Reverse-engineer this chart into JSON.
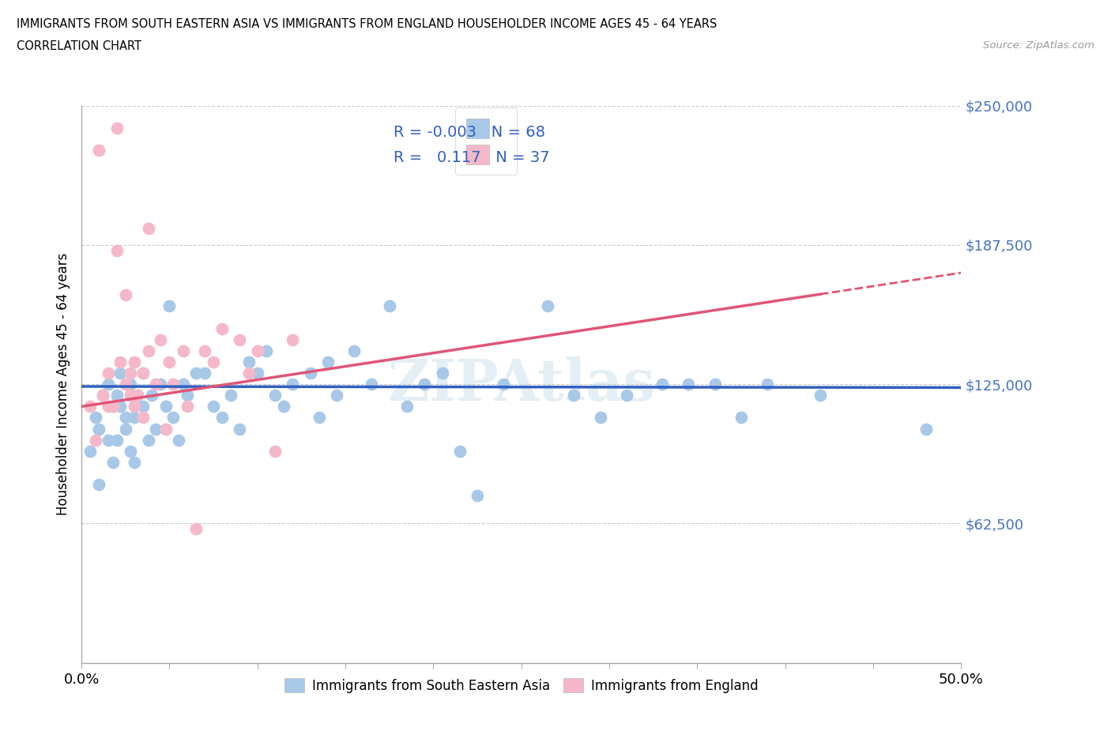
{
  "title_line1": "IMMIGRANTS FROM SOUTH EASTERN ASIA VS IMMIGRANTS FROM ENGLAND HOUSEHOLDER INCOME AGES 45 - 64 YEARS",
  "title_line2": "CORRELATION CHART",
  "source_text": "Source: ZipAtlas.com",
  "ylabel": "Householder Income Ages 45 - 64 years",
  "xlim": [
    0.0,
    0.5
  ],
  "ylim": [
    0,
    250000
  ],
  "yticks": [
    0,
    62500,
    125000,
    187500,
    250000
  ],
  "ytick_labels": [
    "",
    "$62,500",
    "$125,000",
    "$187,500",
    "$250,000"
  ],
  "xticks": [
    0.0,
    0.05,
    0.1,
    0.15,
    0.2,
    0.25,
    0.3,
    0.35,
    0.4,
    0.45,
    0.5
  ],
  "xtick_labels_major": [
    "0.0%",
    "",
    "",
    "",
    "",
    "",
    "",
    "",
    "",
    "",
    "50.0%"
  ],
  "watermark": "ZIPAtlas",
  "blue_color": "#a8c8e8",
  "pink_color": "#f5b8c8",
  "blue_line_color": "#3060c0",
  "pink_line_color": "#e05575",
  "tick_color": "#4472C4",
  "legend_blue_r": "R = -0.003",
  "legend_blue_n": "N = 68",
  "legend_pink_r": "R =  0.117",
  "legend_pink_n": "N = 37",
  "blue_scatter": [
    [
      0.005,
      95000
    ],
    [
      0.008,
      110000
    ],
    [
      0.01,
      80000
    ],
    [
      0.01,
      105000
    ],
    [
      0.012,
      120000
    ],
    [
      0.015,
      100000
    ],
    [
      0.015,
      125000
    ],
    [
      0.018,
      115000
    ],
    [
      0.018,
      90000
    ],
    [
      0.02,
      120000
    ],
    [
      0.02,
      100000
    ],
    [
      0.022,
      115000
    ],
    [
      0.022,
      130000
    ],
    [
      0.025,
      105000
    ],
    [
      0.025,
      110000
    ],
    [
      0.028,
      95000
    ],
    [
      0.028,
      125000
    ],
    [
      0.03,
      110000
    ],
    [
      0.03,
      90000
    ],
    [
      0.032,
      120000
    ],
    [
      0.035,
      115000
    ],
    [
      0.035,
      130000
    ],
    [
      0.038,
      100000
    ],
    [
      0.04,
      120000
    ],
    [
      0.042,
      105000
    ],
    [
      0.045,
      125000
    ],
    [
      0.048,
      115000
    ],
    [
      0.05,
      160000
    ],
    [
      0.052,
      110000
    ],
    [
      0.055,
      100000
    ],
    [
      0.058,
      125000
    ],
    [
      0.06,
      120000
    ],
    [
      0.065,
      130000
    ],
    [
      0.07,
      130000
    ],
    [
      0.075,
      115000
    ],
    [
      0.08,
      110000
    ],
    [
      0.085,
      120000
    ],
    [
      0.09,
      105000
    ],
    [
      0.095,
      135000
    ],
    [
      0.1,
      130000
    ],
    [
      0.105,
      140000
    ],
    [
      0.11,
      120000
    ],
    [
      0.115,
      115000
    ],
    [
      0.12,
      125000
    ],
    [
      0.13,
      130000
    ],
    [
      0.135,
      110000
    ],
    [
      0.14,
      135000
    ],
    [
      0.145,
      120000
    ],
    [
      0.155,
      140000
    ],
    [
      0.165,
      125000
    ],
    [
      0.175,
      160000
    ],
    [
      0.185,
      115000
    ],
    [
      0.195,
      125000
    ],
    [
      0.205,
      130000
    ],
    [
      0.215,
      95000
    ],
    [
      0.225,
      75000
    ],
    [
      0.24,
      125000
    ],
    [
      0.265,
      160000
    ],
    [
      0.28,
      120000
    ],
    [
      0.295,
      110000
    ],
    [
      0.31,
      120000
    ],
    [
      0.33,
      125000
    ],
    [
      0.345,
      125000
    ],
    [
      0.36,
      125000
    ],
    [
      0.375,
      110000
    ],
    [
      0.39,
      125000
    ],
    [
      0.42,
      120000
    ],
    [
      0.48,
      105000
    ]
  ],
  "pink_scatter": [
    [
      0.005,
      115000
    ],
    [
      0.008,
      100000
    ],
    [
      0.01,
      230000
    ],
    [
      0.012,
      120000
    ],
    [
      0.015,
      115000
    ],
    [
      0.015,
      130000
    ],
    [
      0.018,
      115000
    ],
    [
      0.02,
      185000
    ],
    [
      0.02,
      240000
    ],
    [
      0.022,
      135000
    ],
    [
      0.025,
      125000
    ],
    [
      0.025,
      165000
    ],
    [
      0.028,
      120000
    ],
    [
      0.028,
      130000
    ],
    [
      0.03,
      115000
    ],
    [
      0.03,
      135000
    ],
    [
      0.032,
      120000
    ],
    [
      0.035,
      110000
    ],
    [
      0.035,
      130000
    ],
    [
      0.038,
      195000
    ],
    [
      0.038,
      140000
    ],
    [
      0.042,
      125000
    ],
    [
      0.045,
      145000
    ],
    [
      0.048,
      105000
    ],
    [
      0.05,
      135000
    ],
    [
      0.052,
      125000
    ],
    [
      0.058,
      140000
    ],
    [
      0.06,
      115000
    ],
    [
      0.065,
      60000
    ],
    [
      0.07,
      140000
    ],
    [
      0.075,
      135000
    ],
    [
      0.08,
      150000
    ],
    [
      0.09,
      145000
    ],
    [
      0.095,
      130000
    ],
    [
      0.1,
      140000
    ],
    [
      0.11,
      95000
    ],
    [
      0.12,
      145000
    ]
  ]
}
